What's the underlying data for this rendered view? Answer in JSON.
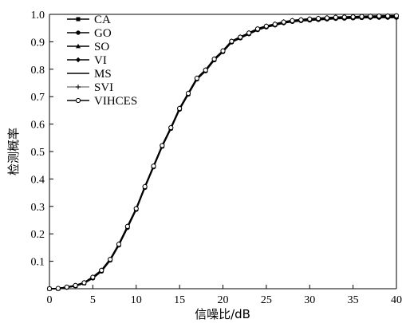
{
  "chart_data": {
    "type": "line",
    "title": "",
    "xlabel": "信噪比/dB",
    "ylabel": "检测概率",
    "xlim": [
      0,
      40
    ],
    "ylim": [
      0,
      1.0
    ],
    "x_ticks": [
      "0",
      "5",
      "10",
      "15",
      "20",
      "25",
      "30",
      "35",
      "40"
    ],
    "y_ticks": [
      "0.1",
      "0.2",
      "0.3",
      "0.4",
      "0.5",
      "0.6",
      "0.7",
      "0.8",
      "0.9",
      "1.0"
    ],
    "grid": false,
    "legend_position": "top-left",
    "x": [
      0,
      1,
      2,
      3,
      4,
      5,
      6,
      7,
      8,
      9,
      10,
      11,
      12,
      13,
      14,
      15,
      16,
      17,
      18,
      19,
      20,
      21,
      22,
      23,
      24,
      25,
      26,
      27,
      28,
      29,
      30,
      31,
      32,
      33,
      34,
      35,
      36,
      37,
      38,
      39,
      40
    ],
    "series": [
      {
        "name": "CA",
        "marker": "square",
        "values": [
          0.0,
          0.0,
          0.005,
          0.01,
          0.02,
          0.04,
          0.065,
          0.105,
          0.16,
          0.225,
          0.29,
          0.37,
          0.445,
          0.52,
          0.585,
          0.655,
          0.71,
          0.765,
          0.795,
          0.835,
          0.865,
          0.9,
          0.915,
          0.93,
          0.945,
          0.955,
          0.962,
          0.97,
          0.975,
          0.978,
          0.98,
          0.982,
          0.984,
          0.986,
          0.987,
          0.988,
          0.989,
          0.99,
          0.99,
          0.99,
          0.99
        ]
      },
      {
        "name": "GO",
        "marker": "circle",
        "values": [
          0.0,
          0.0,
          0.004,
          0.01,
          0.02,
          0.038,
          0.063,
          0.103,
          0.158,
          0.222,
          0.288,
          0.368,
          0.443,
          0.518,
          0.583,
          0.653,
          0.708,
          0.763,
          0.793,
          0.833,
          0.863,
          0.898,
          0.913,
          0.928,
          0.943,
          0.953,
          0.96,
          0.968,
          0.973,
          0.976,
          0.978,
          0.98,
          0.982,
          0.984,
          0.985,
          0.986,
          0.987,
          0.988,
          0.988,
          0.988,
          0.988
        ]
      },
      {
        "name": "SO",
        "marker": "triangle",
        "values": [
          0.0,
          0.001,
          0.006,
          0.012,
          0.022,
          0.042,
          0.067,
          0.107,
          0.162,
          0.227,
          0.292,
          0.372,
          0.447,
          0.522,
          0.587,
          0.657,
          0.712,
          0.767,
          0.797,
          0.837,
          0.867,
          0.902,
          0.917,
          0.932,
          0.947,
          0.957,
          0.964,
          0.972,
          0.977,
          0.98,
          0.982,
          0.984,
          0.986,
          0.988,
          0.989,
          0.99,
          0.991,
          0.992,
          0.992,
          0.993,
          0.993
        ]
      },
      {
        "name": "VI",
        "marker": "diamond",
        "values": [
          0.0,
          0.0,
          0.005,
          0.011,
          0.021,
          0.04,
          0.066,
          0.106,
          0.161,
          0.226,
          0.291,
          0.371,
          0.446,
          0.521,
          0.586,
          0.656,
          0.711,
          0.766,
          0.796,
          0.836,
          0.866,
          0.901,
          0.916,
          0.931,
          0.946,
          0.956,
          0.963,
          0.971,
          0.976,
          0.979,
          0.981,
          0.983,
          0.985,
          0.987,
          0.988,
          0.989,
          0.99,
          0.991,
          0.991,
          0.991,
          0.992
        ]
      },
      {
        "name": "MS",
        "marker": "none",
        "values": [
          0.0,
          0.0,
          0.005,
          0.01,
          0.02,
          0.04,
          0.065,
          0.105,
          0.16,
          0.225,
          0.29,
          0.37,
          0.445,
          0.52,
          0.585,
          0.655,
          0.71,
          0.765,
          0.795,
          0.835,
          0.865,
          0.9,
          0.915,
          0.93,
          0.945,
          0.955,
          0.962,
          0.97,
          0.975,
          0.978,
          0.98,
          0.982,
          0.984,
          0.986,
          0.987,
          0.988,
          0.989,
          0.99,
          0.99,
          0.99,
          0.99
        ]
      },
      {
        "name": "SVI",
        "marker": "plus",
        "values": [
          0.0,
          0.001,
          0.006,
          0.012,
          0.023,
          0.043,
          0.068,
          0.108,
          0.163,
          0.228,
          0.293,
          0.373,
          0.448,
          0.523,
          0.588,
          0.658,
          0.713,
          0.768,
          0.798,
          0.838,
          0.868,
          0.903,
          0.918,
          0.933,
          0.948,
          0.958,
          0.965,
          0.973,
          0.978,
          0.981,
          0.984,
          0.986,
          0.988,
          0.99,
          0.991,
          0.992,
          0.993,
          0.994,
          0.994,
          0.995,
          0.995
        ]
      },
      {
        "name": "VIHCES",
        "marker": "open-circle",
        "values": [
          0.0,
          0.001,
          0.006,
          0.012,
          0.022,
          0.042,
          0.067,
          0.107,
          0.162,
          0.227,
          0.292,
          0.372,
          0.447,
          0.522,
          0.587,
          0.657,
          0.712,
          0.767,
          0.797,
          0.837,
          0.867,
          0.902,
          0.917,
          0.932,
          0.947,
          0.957,
          0.964,
          0.972,
          0.977,
          0.98,
          0.983,
          0.985,
          0.987,
          0.989,
          0.99,
          0.991,
          0.992,
          0.993,
          0.994,
          0.994,
          0.995
        ]
      }
    ]
  }
}
